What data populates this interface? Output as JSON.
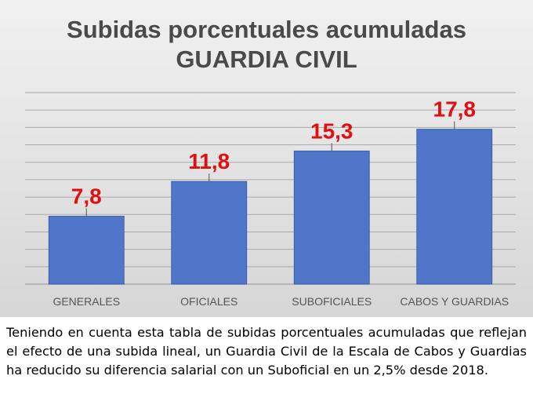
{
  "chart_data": {
    "type": "bar",
    "title": "Subidas porcentuales acumuladas",
    "subtitle": "GUARDIA CIVIL",
    "categories": [
      "GENERALES",
      "OFICIALES",
      "SUBOFICIALES",
      "CABOS Y GUARDIAS"
    ],
    "values": [
      7.8,
      11.8,
      15.3,
      17.8
    ],
    "value_labels": [
      "7,8",
      "11,8",
      "15,3",
      "17,8"
    ],
    "ylim": [
      0,
      22
    ],
    "grid": true,
    "legend": "none",
    "colors": {
      "bar": "#4f76c8",
      "bar_edge": "#2f55a0",
      "value_label": "#e01010",
      "grid": "#a9a9a9"
    }
  },
  "caption": "Teniendo en cuenta esta tabla de subidas porcentuales acumuladas que reflejan el efecto de una subida lineal, un Guardia Civil de la Escala de Cabos y Guardias ha reducido su diferencia salarial con un Suboficial en un 2,5% desde 2018."
}
